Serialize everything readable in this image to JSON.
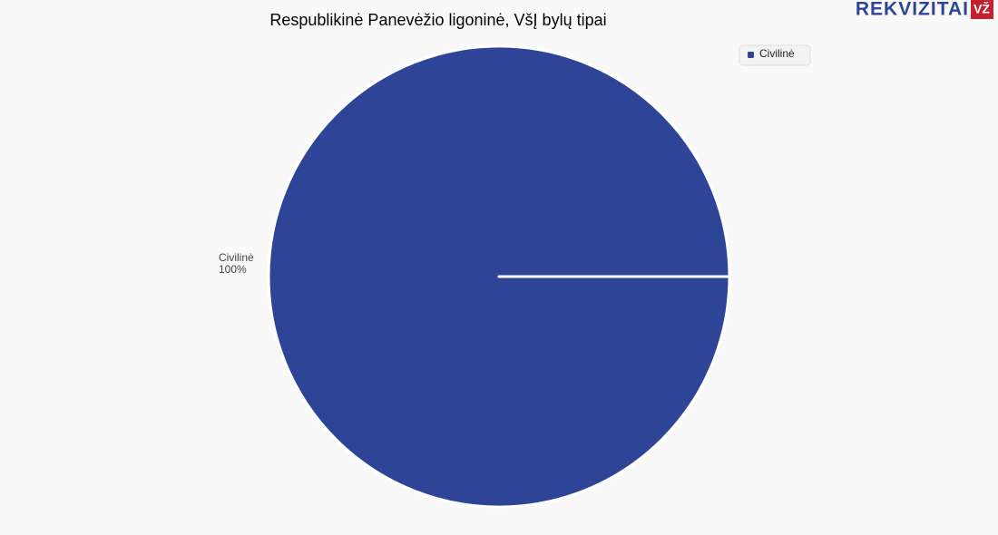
{
  "chart_data": {
    "type": "pie",
    "title": "Respublikinė Panevėžio ligoninė, VšĮ bylų tipai",
    "brand": "REKVIZITAI",
    "brand_badge": "VŽ",
    "categories": [
      "Civilinė"
    ],
    "values": [
      100
    ],
    "value_labels": [
      "100%"
    ],
    "colors": [
      "#2e4597"
    ],
    "legend": "top-right"
  }
}
